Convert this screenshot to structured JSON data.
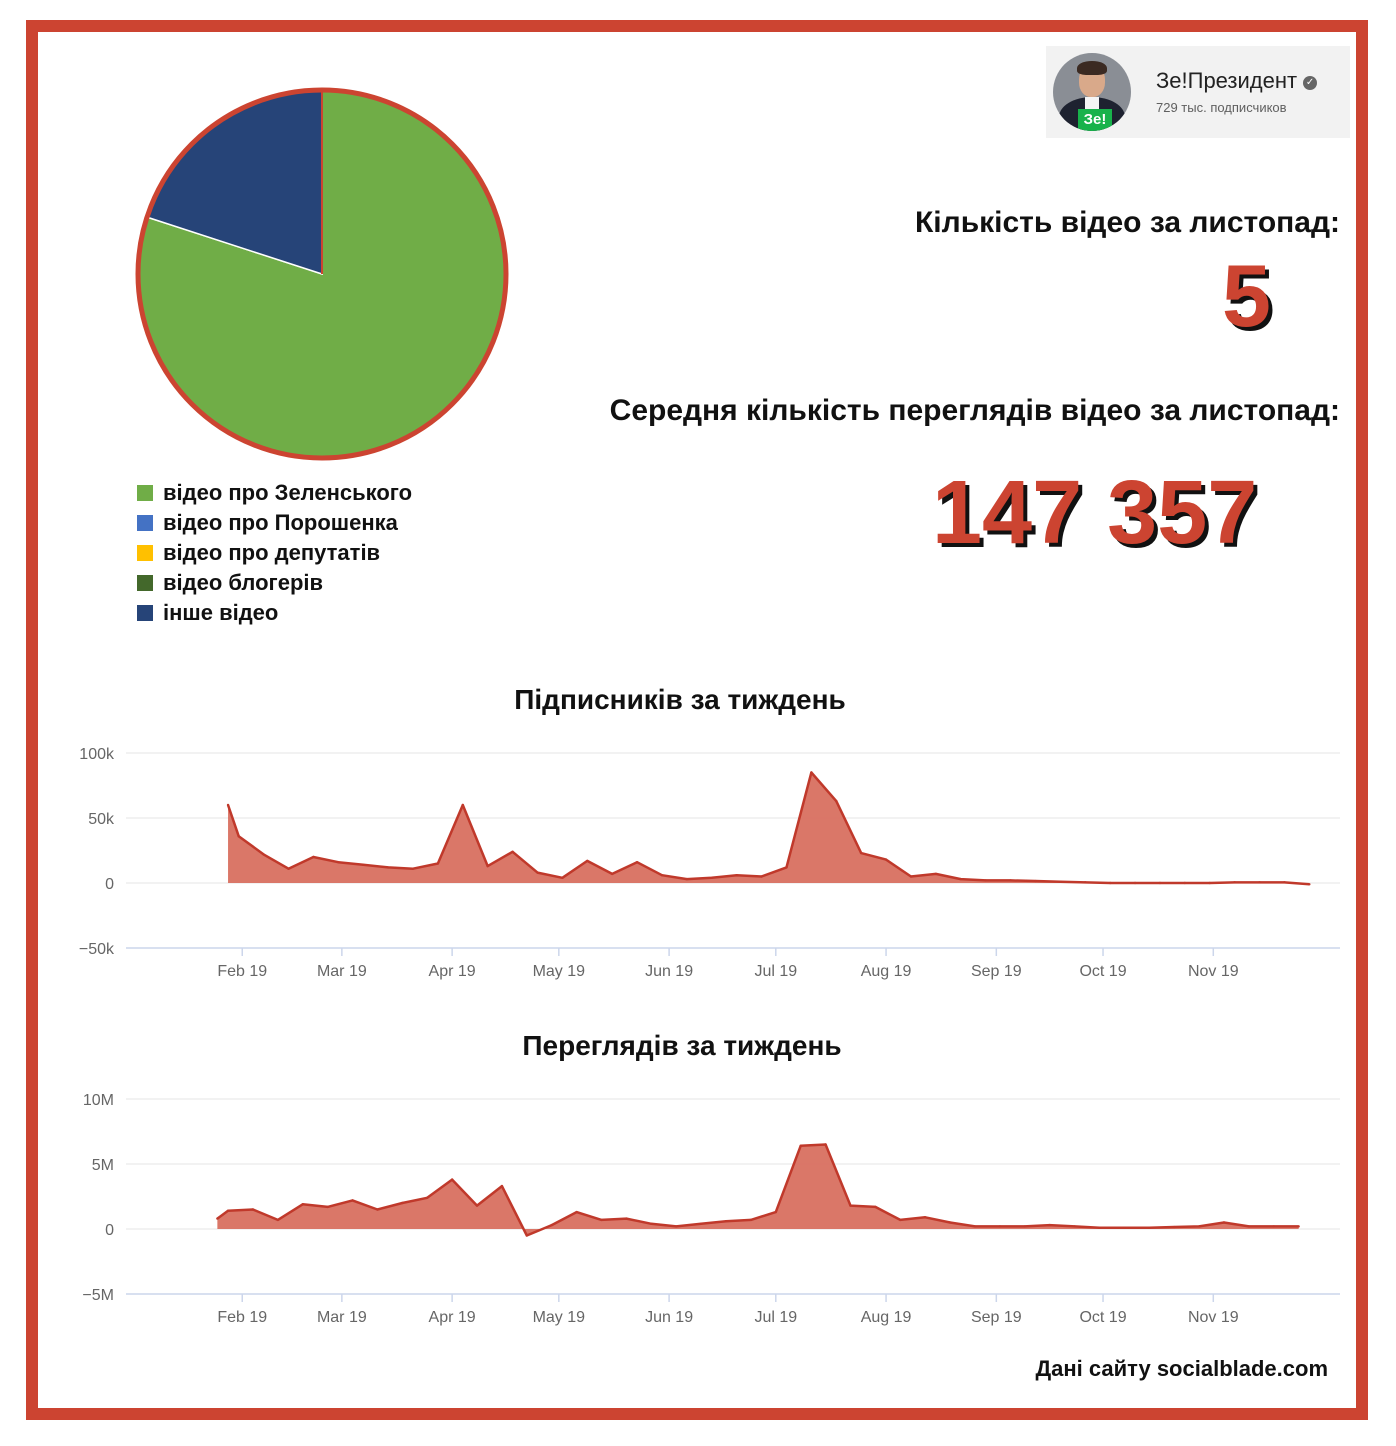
{
  "channel": {
    "name": "Зе!Президент",
    "subscribers": "729 тыс. подписчиков",
    "avatar_badge": "Зе!",
    "verified_icon": "check-circle-icon"
  },
  "stats": {
    "videos_label": "Кількість відео за листопад:",
    "videos_value": "5",
    "views_label": "Середня кількість переглядів відео за листопад:",
    "views_value": "147 357"
  },
  "source": "Дані сайту socialblade.com",
  "colors": {
    "frame": "#cc4431",
    "area_fill": "#d87060",
    "area_line": "#c0392b",
    "grid": "#e6e6e6",
    "axis": "#ccd6eb"
  },
  "chart_data": [
    {
      "type": "pie",
      "values": [
        4,
        0,
        0,
        0,
        1
      ],
      "labels": [
        "відео про Зеленського",
        "відео про Порошенка",
        "відео про депутатів",
        "відео блогерів",
        "інше відео"
      ],
      "colors": [
        "#70ad47",
        "#4472c4",
        "#ffc000",
        "#43682b",
        "#264478"
      ],
      "legend": "bottom-left"
    },
    {
      "type": "area",
      "title": "Підписників за тиждень",
      "x_tick_labels": [
        "Feb 19",
        "Mar 19",
        "Apr 19",
        "May 19",
        "Jun 19",
        "Jul 19",
        "Aug 19",
        "Sep 19",
        "Oct 19",
        "Nov 19"
      ],
      "y_tick_labels": [
        "100k",
        "50k",
        "0",
        "−50k"
      ],
      "ylim": [
        -50000,
        100000
      ],
      "grid": true,
      "x": [
        "2019-01-28",
        "2019-01-31",
        "2019-02-07",
        "2019-02-14",
        "2019-02-21",
        "2019-02-28",
        "2019-03-07",
        "2019-03-14",
        "2019-03-21",
        "2019-03-28",
        "2019-04-04",
        "2019-04-11",
        "2019-04-18",
        "2019-04-25",
        "2019-05-02",
        "2019-05-09",
        "2019-05-16",
        "2019-05-23",
        "2019-05-30",
        "2019-06-06",
        "2019-06-13",
        "2019-06-20",
        "2019-06-27",
        "2019-07-04",
        "2019-07-11",
        "2019-07-18",
        "2019-07-25",
        "2019-08-01",
        "2019-08-08",
        "2019-08-15",
        "2019-08-22",
        "2019-08-29",
        "2019-09-05",
        "2019-09-12",
        "2019-09-19",
        "2019-09-26",
        "2019-10-03",
        "2019-10-10",
        "2019-10-17",
        "2019-10-24",
        "2019-10-31",
        "2019-11-07",
        "2019-11-14",
        "2019-11-21",
        "2019-11-28"
      ],
      "values": [
        60000,
        36000,
        22000,
        11000,
        20000,
        16000,
        14000,
        12000,
        11000,
        15000,
        60000,
        13000,
        24000,
        8000,
        4000,
        17000,
        7000,
        16000,
        6000,
        3000,
        4000,
        6000,
        5000,
        12000,
        85000,
        63000,
        23000,
        18000,
        5000,
        7000,
        3000,
        2000,
        2000,
        1500,
        1000,
        500,
        0,
        0,
        0,
        0,
        0,
        500,
        500,
        500,
        -1000
      ]
    },
    {
      "type": "area",
      "title": "Переглядів за тиждень",
      "x_tick_labels": [
        "Feb 19",
        "Mar 19",
        "Apr 19",
        "May 19",
        "Jun 19",
        "Jul 19",
        "Aug 19",
        "Sep 19",
        "Oct 19",
        "Nov 19"
      ],
      "y_tick_labels": [
        "10M",
        "5M",
        "0",
        "−5M"
      ],
      "ylim": [
        -5000000,
        10000000
      ],
      "grid": true,
      "x": [
        "2019-01-25",
        "2019-01-28",
        "2019-02-04",
        "2019-02-11",
        "2019-02-18",
        "2019-02-25",
        "2019-03-04",
        "2019-03-11",
        "2019-03-18",
        "2019-03-25",
        "2019-04-01",
        "2019-04-08",
        "2019-04-15",
        "2019-04-22",
        "2019-04-29",
        "2019-05-06",
        "2019-05-13",
        "2019-05-20",
        "2019-05-27",
        "2019-06-03",
        "2019-06-10",
        "2019-06-17",
        "2019-06-24",
        "2019-07-01",
        "2019-07-08",
        "2019-07-15",
        "2019-07-22",
        "2019-07-29",
        "2019-08-05",
        "2019-08-12",
        "2019-08-19",
        "2019-08-26",
        "2019-09-02",
        "2019-09-09",
        "2019-09-16",
        "2019-09-23",
        "2019-09-30",
        "2019-10-07",
        "2019-10-14",
        "2019-10-21",
        "2019-10-28",
        "2019-11-04",
        "2019-11-11",
        "2019-11-18",
        "2019-11-25"
      ],
      "values": [
        800000,
        1400000,
        1500000,
        700000,
        1900000,
        1700000,
        2200000,
        1500000,
        2000000,
        2400000,
        3800000,
        1800000,
        3300000,
        -500000,
        300000,
        1300000,
        700000,
        800000,
        400000,
        200000,
        400000,
        600000,
        700000,
        1300000,
        6400000,
        6500000,
        1800000,
        1700000,
        700000,
        900000,
        500000,
        200000,
        200000,
        200000,
        300000,
        200000,
        100000,
        100000,
        100000,
        150000,
        200000,
        500000,
        200000,
        200000,
        200000
      ]
    }
  ]
}
